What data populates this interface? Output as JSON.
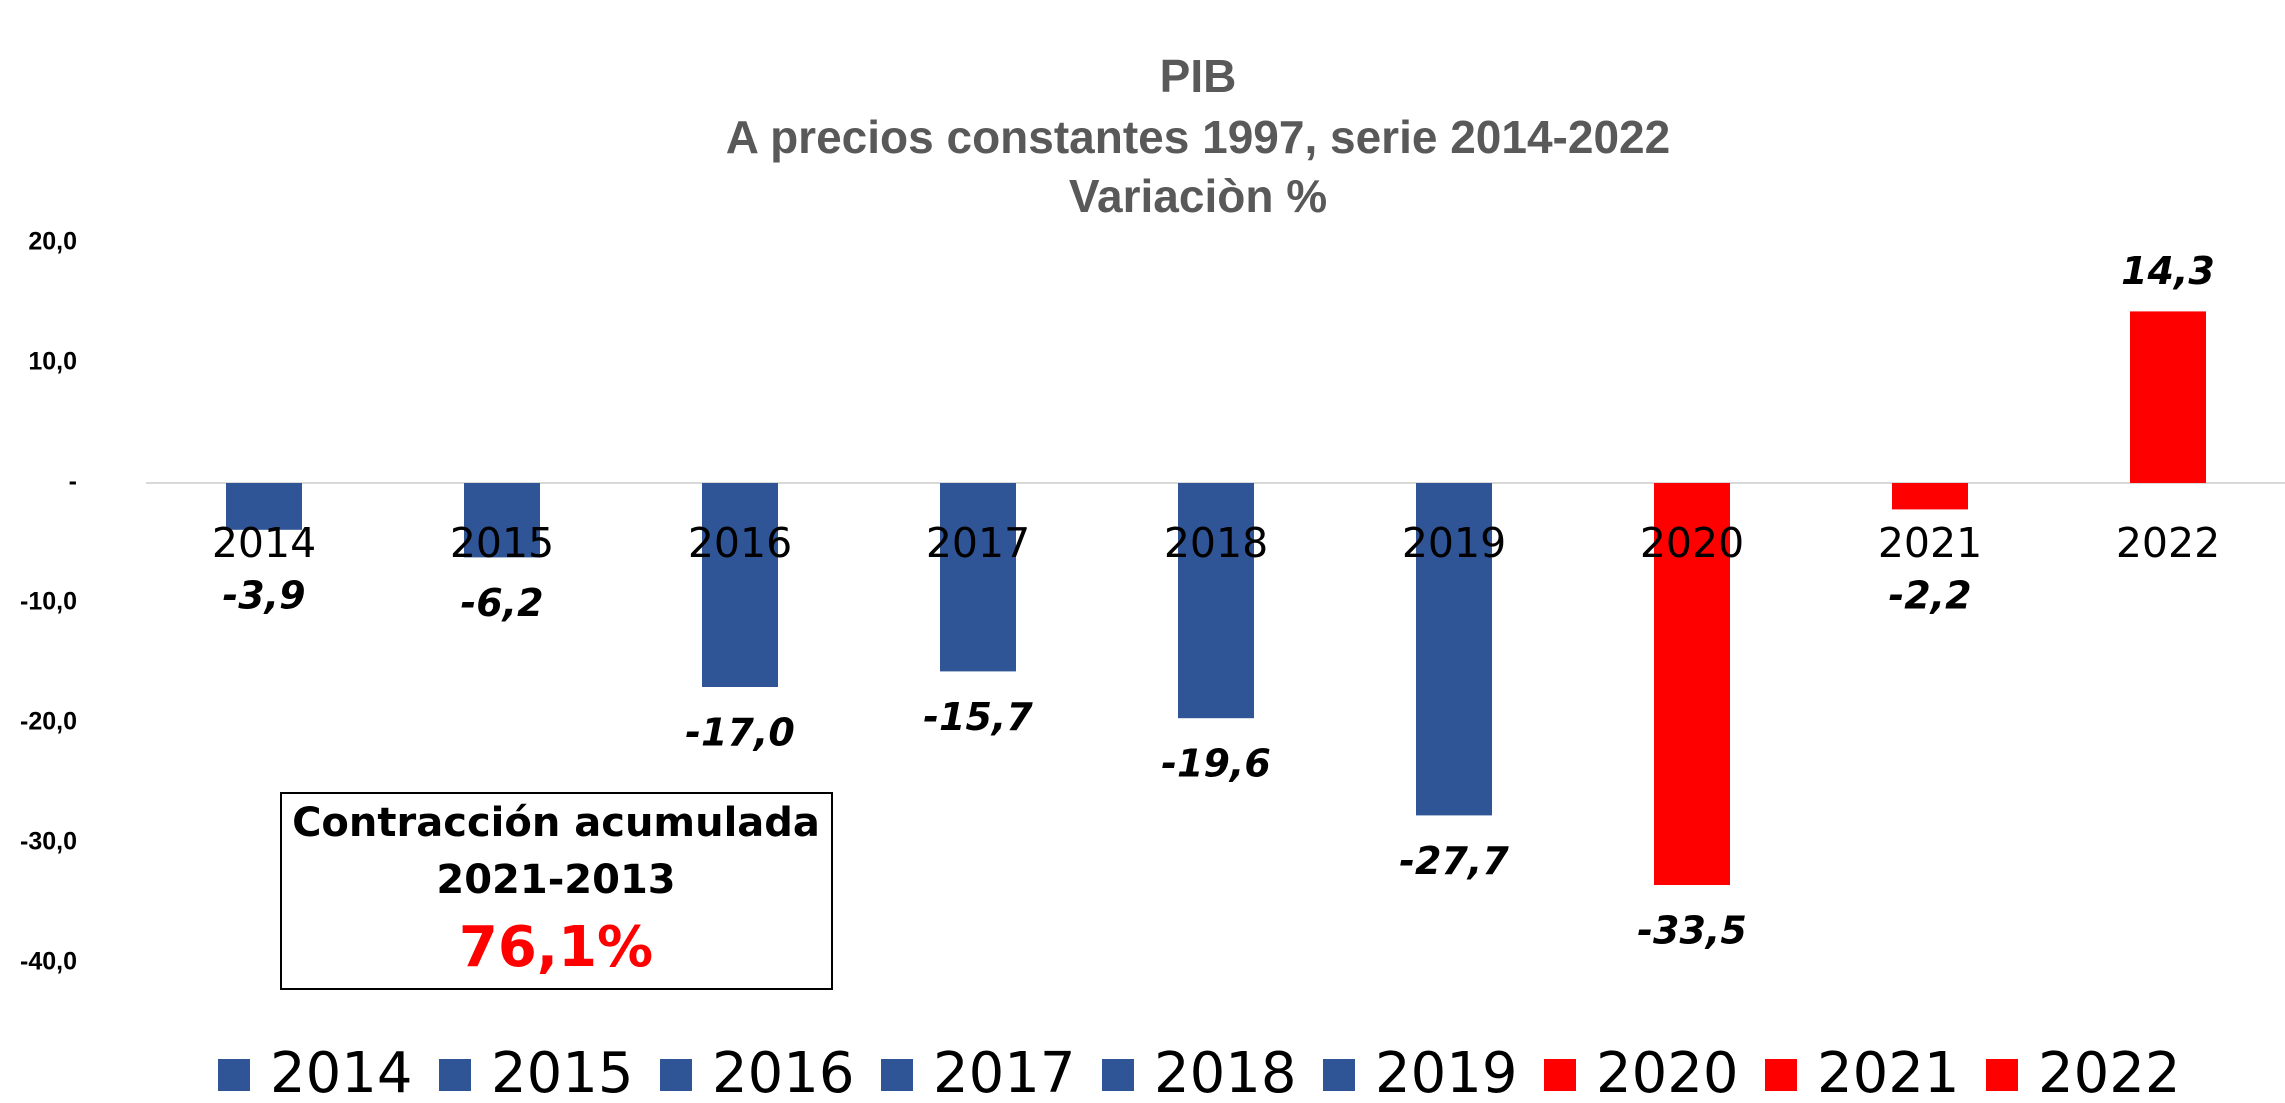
{
  "chart_data": {
    "type": "bar",
    "title": "PIB",
    "subtitle": [
      "A precios constantes 1997, serie 2014-2022",
      "Variaciòn %"
    ],
    "categories": [
      "2014",
      "2015",
      "2016",
      "2017",
      "2018",
      "2019",
      "2020",
      "2021",
      "2022"
    ],
    "values": [
      -3.9,
      -6.2,
      -17.0,
      -15.7,
      -19.6,
      -27.7,
      -33.5,
      -2.2,
      14.3
    ],
    "value_labels": [
      "-3,9",
      "-6,2",
      "-17,0",
      "-15,7",
      "-19,6",
      "-27,7",
      "-33,5",
      "-2,2",
      "14,3"
    ],
    "colors": [
      "#2f5597",
      "#2f5597",
      "#2f5597",
      "#2f5597",
      "#2f5597",
      "#2f5597",
      "#ff0000",
      "#ff0000",
      "#ff0000"
    ],
    "ylim": [
      -40,
      20
    ],
    "yticks": [
      {
        "value": -40,
        "label": "-40,0"
      },
      {
        "value": -30,
        "label": "-30,0"
      },
      {
        "value": -20,
        "label": "-20,0"
      },
      {
        "value": -10,
        "label": "-10,0"
      },
      {
        "value": 0,
        "label": "-"
      },
      {
        "value": 10,
        "label": "10,0"
      },
      {
        "value": 20,
        "label": "20,0"
      }
    ],
    "legend": "bottom",
    "annotation": [
      "Contracción acumulada",
      "2021-2013",
      "76,1%"
    ]
  }
}
